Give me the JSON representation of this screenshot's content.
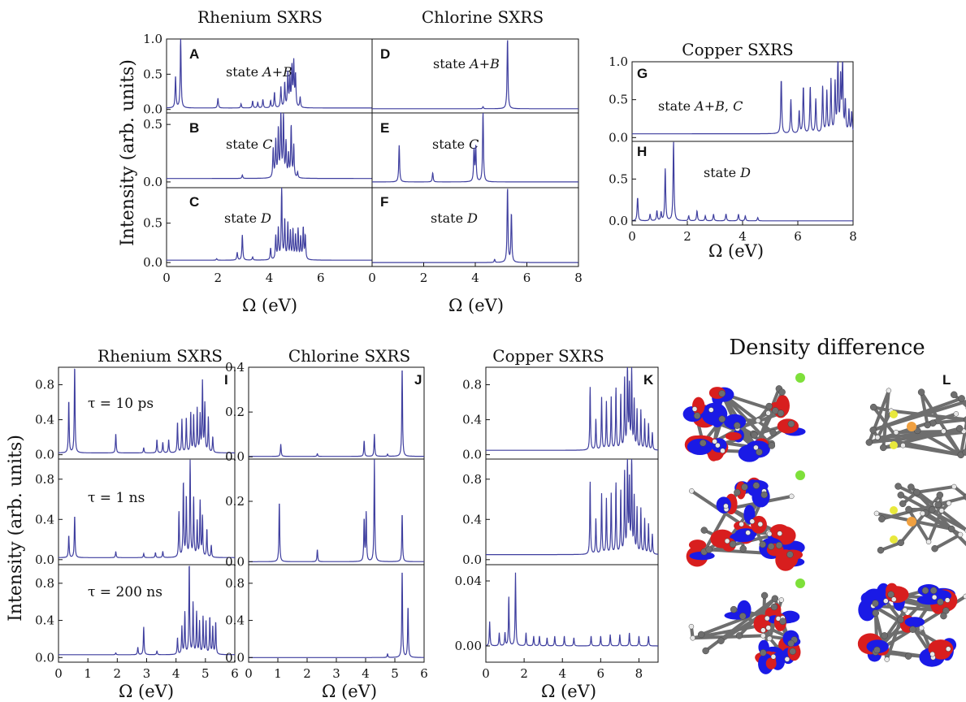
{
  "colors": {
    "line": "#3f3f9f",
    "axis": "#111111",
    "density_red": "#d81e1e",
    "density_blue": "#1a1ae6",
    "atom_grey": "#6e6e6e",
    "atom_white": "#e9e9e9",
    "atom_green": "#7ee03a",
    "atom_yellow": "#e8e83c",
    "atom_orange": "#f0a040"
  },
  "top": {
    "titles": {
      "rhenium": "Rhenium SXRS",
      "chlorine": "Chlorine SXRS",
      "copper": "Copper SXRS"
    },
    "ylabel": "Intensity (arb. units)",
    "xlabel": "Ω (eV)",
    "panel_letters": [
      "A",
      "B",
      "C",
      "D",
      "E",
      "F",
      "G",
      "H"
    ],
    "state_labels": {
      "A": "state A+B",
      "B": "state C",
      "C": "state D",
      "D": "state A+B",
      "E": "state C",
      "F": "state D",
      "G": "state A+B, C",
      "H": "state D"
    }
  },
  "bottom": {
    "titles": {
      "rhenium": "Rhenium SXRS",
      "chlorine": "Chlorine SXRS",
      "copper": "Copper SXRS",
      "density": "Density difference"
    },
    "ylabel": "Intensity (arb. units)",
    "xlabel": "Ω (eV)",
    "panel_letters": [
      "I",
      "J",
      "K",
      "L"
    ],
    "tau_labels": [
      "τ = 10 ps",
      "τ = 1 ns",
      "τ = 200 ns"
    ]
  },
  "chart_data": [
    {
      "type": "line",
      "panel": "A",
      "title": "Rhenium SXRS",
      "label": "state A+B",
      "xlim": [
        0,
        8
      ],
      "ylim": [
        -0.05,
        1.0
      ],
      "yticks": [
        "0.0",
        "0.5",
        "1.0"
      ],
      "baseline": 0.02,
      "peaks": [
        [
          0.35,
          0.45
        ],
        [
          0.55,
          1.0
        ],
        [
          2.0,
          0.14
        ],
        [
          2.9,
          0.06
        ],
        [
          3.35,
          0.1
        ],
        [
          3.55,
          0.08
        ],
        [
          3.75,
          0.12
        ],
        [
          4.05,
          0.1
        ],
        [
          4.2,
          0.22
        ],
        [
          4.45,
          0.3
        ],
        [
          4.6,
          0.35
        ],
        [
          4.72,
          0.48
        ],
        [
          4.8,
          0.4
        ],
        [
          4.88,
          0.55
        ],
        [
          4.95,
          0.62
        ],
        [
          5.02,
          0.45
        ],
        [
          5.2,
          0.15
        ]
      ]
    },
    {
      "type": "line",
      "panel": "B",
      "label": "state C",
      "xlim": [
        0,
        8
      ],
      "ylim": [
        -0.05,
        0.6
      ],
      "yticks": [
        "0.0",
        "0.5"
      ],
      "baseline": 0.03,
      "peaks": [
        [
          2.95,
          0.03
        ],
        [
          4.15,
          0.25
        ],
        [
          4.25,
          0.32
        ],
        [
          4.35,
          0.42
        ],
        [
          4.45,
          0.6
        ],
        [
          4.55,
          0.55
        ],
        [
          4.65,
          0.3
        ],
        [
          4.75,
          0.2
        ],
        [
          4.85,
          0.45
        ],
        [
          4.95,
          0.28
        ],
        [
          5.1,
          0.05
        ]
      ]
    },
    {
      "type": "line",
      "panel": "C",
      "label": "state D",
      "xlim": [
        0,
        8
      ],
      "ylim": [
        -0.05,
        0.95
      ],
      "yticks": [
        "0.0",
        "0.5"
      ],
      "baseline": 0.03,
      "peaks": [
        [
          1.95,
          0.02
        ],
        [
          2.75,
          0.1
        ],
        [
          2.95,
          0.32
        ],
        [
          3.35,
          0.04
        ],
        [
          4.05,
          0.15
        ],
        [
          4.25,
          0.3
        ],
        [
          4.35,
          0.4
        ],
        [
          4.48,
          0.92
        ],
        [
          4.6,
          0.5
        ],
        [
          4.72,
          0.45
        ],
        [
          4.82,
          0.35
        ],
        [
          4.92,
          0.38
        ],
        [
          5.02,
          0.3
        ],
        [
          5.12,
          0.38
        ],
        [
          5.22,
          0.28
        ],
        [
          5.32,
          0.4
        ],
        [
          5.4,
          0.3
        ]
      ]
    },
    {
      "type": "line",
      "panel": "D",
      "title": "Chlorine SXRS",
      "label": "state A+B",
      "xlim": [
        0,
        8
      ],
      "ylim": [
        -0.05,
        1.0
      ],
      "baseline": 0.01,
      "peaks": [
        [
          4.3,
          0.03
        ],
        [
          5.25,
          1.0
        ]
      ]
    },
    {
      "type": "line",
      "panel": "E",
      "label": "state C",
      "xlim": [
        0,
        8
      ],
      "ylim": [
        -0.05,
        0.6
      ],
      "baseline": 0.0,
      "peaks": [
        [
          1.05,
          0.32
        ],
        [
          2.35,
          0.08
        ],
        [
          3.95,
          0.28
        ],
        [
          4.02,
          0.3
        ],
        [
          4.3,
          0.62
        ]
      ]
    },
    {
      "type": "line",
      "panel": "F",
      "label": "state D",
      "xlim": [
        0,
        8
      ],
      "xticks": [
        "0",
        "2",
        "4",
        "6",
        "8"
      ],
      "ylim": [
        -0.05,
        0.95
      ],
      "baseline": 0.0,
      "peaks": [
        [
          4.75,
          0.04
        ],
        [
          5.25,
          0.95
        ],
        [
          5.4,
          0.62
        ]
      ]
    },
    {
      "type": "line",
      "panel": "G",
      "title": "Copper SXRS",
      "label": "state A+B, C",
      "xlim": [
        0,
        8
      ],
      "ylim": [
        -0.05,
        1.0
      ],
      "yticks": [
        "0.0",
        "0.5",
        "1.0"
      ],
      "baseline": 0.05,
      "peaks": [
        [
          5.4,
          0.72
        ],
        [
          5.75,
          0.45
        ],
        [
          6.05,
          0.3
        ],
        [
          6.2,
          0.62
        ],
        [
          6.45,
          0.62
        ],
        [
          6.65,
          0.45
        ],
        [
          6.9,
          0.62
        ],
        [
          7.05,
          0.55
        ],
        [
          7.2,
          0.7
        ],
        [
          7.35,
          0.65
        ],
        [
          7.45,
          1.0
        ],
        [
          7.55,
          0.72
        ],
        [
          7.62,
          0.95
        ],
        [
          7.72,
          0.42
        ],
        [
          7.85,
          0.3
        ],
        [
          7.95,
          0.28
        ]
      ]
    },
    {
      "type": "line",
      "panel": "H",
      "label": "state D",
      "xlim": [
        0,
        8
      ],
      "xticks": [
        "0",
        "2",
        "4",
        "6",
        "8"
      ],
      "ylim": [
        -0.05,
        0.95
      ],
      "yticks": [
        "0.0",
        "0.5"
      ],
      "baseline": 0.0,
      "peaks": [
        [
          0.2,
          0.28
        ],
        [
          0.65,
          0.08
        ],
        [
          0.9,
          0.12
        ],
        [
          1.05,
          0.1
        ],
        [
          1.2,
          0.62
        ],
        [
          1.5,
          0.95
        ],
        [
          2.05,
          0.06
        ],
        [
          2.35,
          0.12
        ],
        [
          2.65,
          0.06
        ],
        [
          2.95,
          0.08
        ],
        [
          3.4,
          0.08
        ],
        [
          3.85,
          0.08
        ],
        [
          4.1,
          0.06
        ],
        [
          4.55,
          0.04
        ]
      ]
    },
    {
      "type": "line",
      "panel": "I",
      "title": "Rhenium SXRS",
      "label": "τ = 10 ps",
      "xlim": [
        0,
        6
      ],
      "ylim": [
        -0.05,
        1.0
      ],
      "yticks": [
        "0.0",
        "0.4",
        "0.8"
      ],
      "baseline": 0.02,
      "peaks": [
        [
          0.35,
          0.6
        ],
        [
          0.55,
          1.0
        ],
        [
          1.95,
          0.22
        ],
        [
          2.9,
          0.06
        ],
        [
          3.35,
          0.15
        ],
        [
          3.55,
          0.12
        ],
        [
          3.75,
          0.15
        ],
        [
          4.05,
          0.35
        ],
        [
          4.2,
          0.38
        ],
        [
          4.35,
          0.4
        ],
        [
          4.5,
          0.45
        ],
        [
          4.6,
          0.42
        ],
        [
          4.72,
          0.5
        ],
        [
          4.82,
          0.42
        ],
        [
          4.9,
          0.8
        ],
        [
          4.98,
          0.55
        ],
        [
          5.1,
          0.4
        ],
        [
          5.25,
          0.18
        ]
      ]
    },
    {
      "type": "line",
      "panel": "I",
      "label": "τ = 1 ns",
      "xlim": [
        0,
        6
      ],
      "ylim": [
        -0.05,
        1.0
      ],
      "yticks": [
        "0.0",
        "0.4",
        "0.8"
      ],
      "baseline": 0.02,
      "peaks": [
        [
          0.35,
          0.22
        ],
        [
          0.55,
          0.42
        ],
        [
          1.95,
          0.06
        ],
        [
          2.9,
          0.04
        ],
        [
          3.3,
          0.05
        ],
        [
          3.55,
          0.06
        ],
        [
          4.1,
          0.45
        ],
        [
          4.25,
          0.75
        ],
        [
          4.35,
          0.6
        ],
        [
          4.48,
          0.95
        ],
        [
          4.6,
          0.58
        ],
        [
          4.72,
          0.35
        ],
        [
          4.82,
          0.55
        ],
        [
          4.9,
          0.4
        ],
        [
          5.05,
          0.28
        ],
        [
          5.2,
          0.12
        ]
      ]
    },
    {
      "type": "line",
      "panel": "I",
      "label": "τ = 200 ns",
      "xlim": [
        0,
        6
      ],
      "xticks": [
        "0",
        "1",
        "2",
        "3",
        "4",
        "5",
        "6"
      ],
      "ylim": [
        -0.05,
        1.0
      ],
      "yticks": [
        "0.0",
        "0.4",
        "0.8"
      ],
      "baseline": 0.03,
      "peaks": [
        [
          1.95,
          0.02
        ],
        [
          2.7,
          0.08
        ],
        [
          2.9,
          0.3
        ],
        [
          3.35,
          0.04
        ],
        [
          4.05,
          0.18
        ],
        [
          4.2,
          0.3
        ],
        [
          4.3,
          0.45
        ],
        [
          4.45,
          0.98
        ],
        [
          4.58,
          0.55
        ],
        [
          4.7,
          0.45
        ],
        [
          4.8,
          0.35
        ],
        [
          4.92,
          0.4
        ],
        [
          5.02,
          0.35
        ],
        [
          5.15,
          0.4
        ],
        [
          5.25,
          0.3
        ],
        [
          5.35,
          0.35
        ]
      ]
    },
    {
      "type": "line",
      "panel": "J",
      "title": "Chlorine SXRS",
      "label": "τ = 10 ps",
      "xlim": [
        0,
        6
      ],
      "ylim": [
        -0.01,
        0.4
      ],
      "yticks": [
        "0.0",
        "0.2",
        "0.4"
      ],
      "baseline": 0.002,
      "peaks": [
        [
          1.1,
          0.055
        ],
        [
          2.35,
          0.012
        ],
        [
          3.95,
          0.07
        ],
        [
          4.3,
          0.1
        ],
        [
          4.75,
          0.01
        ],
        [
          5.25,
          0.4
        ]
      ]
    },
    {
      "type": "line",
      "panel": "J",
      "label": "τ = 1 ns",
      "xlim": [
        0,
        6
      ],
      "ylim": [
        -0.01,
        0.34
      ],
      "yticks": [
        "0.0",
        "0.2"
      ],
      "baseline": 0.0,
      "peaks": [
        [
          1.05,
          0.2
        ],
        [
          2.35,
          0.04
        ],
        [
          3.95,
          0.14
        ],
        [
          4.02,
          0.16
        ],
        [
          4.3,
          0.34
        ],
        [
          5.25,
          0.16
        ]
      ]
    },
    {
      "type": "line",
      "panel": "J",
      "label": "τ = 200 ns",
      "xlim": [
        0,
        6
      ],
      "xticks": [
        "0",
        "1",
        "2",
        "3",
        "4",
        "5",
        "6"
      ],
      "ylim": [
        -0.05,
        1.0
      ],
      "yticks": [
        "0.0",
        "0.4",
        "0.8"
      ],
      "baseline": 0.0,
      "peaks": [
        [
          4.75,
          0.04
        ],
        [
          5.25,
          0.95
        ],
        [
          5.45,
          0.55
        ]
      ]
    },
    {
      "type": "line",
      "panel": "K",
      "title": "Copper SXRS",
      "label": "τ = 10 ps",
      "xlim": [
        0,
        9
      ],
      "ylim": [
        -0.05,
        1.0
      ],
      "yticks": [
        "0.0",
        "0.4",
        "0.8"
      ],
      "baseline": 0.05,
      "peaks": [
        [
          5.45,
          0.72
        ],
        [
          5.75,
          0.35
        ],
        [
          6.05,
          0.6
        ],
        [
          6.3,
          0.55
        ],
        [
          6.55,
          0.6
        ],
        [
          6.8,
          0.7
        ],
        [
          7.05,
          0.62
        ],
        [
          7.25,
          0.8
        ],
        [
          7.4,
          1.0
        ],
        [
          7.5,
          0.7
        ],
        [
          7.62,
          0.95
        ],
        [
          7.75,
          0.55
        ],
        [
          7.9,
          0.45
        ],
        [
          8.1,
          0.45
        ],
        [
          8.3,
          0.35
        ],
        [
          8.5,
          0.3
        ],
        [
          8.7,
          0.2
        ]
      ]
    },
    {
      "type": "line",
      "panel": "K",
      "label": "τ = 1 ns",
      "xlim": [
        0,
        9
      ],
      "ylim": [
        -0.05,
        1.0
      ],
      "yticks": [
        "0.0",
        "0.4",
        "0.8"
      ],
      "baseline": 0.05,
      "peaks": [
        [
          5.45,
          0.72
        ],
        [
          5.75,
          0.35
        ],
        [
          6.05,
          0.6
        ],
        [
          6.3,
          0.55
        ],
        [
          6.55,
          0.6
        ],
        [
          6.8,
          0.7
        ],
        [
          7.05,
          0.62
        ],
        [
          7.25,
          0.8
        ],
        [
          7.4,
          0.95
        ],
        [
          7.5,
          0.7
        ],
        [
          7.62,
          1.0
        ],
        [
          7.75,
          0.55
        ],
        [
          7.9,
          0.45
        ],
        [
          8.1,
          0.45
        ],
        [
          8.3,
          0.35
        ],
        [
          8.5,
          0.3
        ],
        [
          8.7,
          0.2
        ]
      ]
    },
    {
      "type": "line",
      "panel": "K",
      "label": "τ = 200 ns",
      "xlim": [
        0,
        9
      ],
      "xticks": [
        "0",
        "2",
        "4",
        "6",
        "8"
      ],
      "ylim": [
        -0.01,
        0.05
      ],
      "yticks": [
        "0.00",
        "0.04"
      ],
      "baseline": 0.0,
      "peaks": [
        [
          0.2,
          0.015
        ],
        [
          0.7,
          0.008
        ],
        [
          1.0,
          0.008
        ],
        [
          1.2,
          0.03
        ],
        [
          1.55,
          0.045
        ],
        [
          2.1,
          0.008
        ],
        [
          2.5,
          0.006
        ],
        [
          2.8,
          0.006
        ],
        [
          3.2,
          0.005
        ],
        [
          3.6,
          0.006
        ],
        [
          4.1,
          0.006
        ],
        [
          4.6,
          0.005
        ],
        [
          5.5,
          0.006
        ],
        [
          6.0,
          0.006
        ],
        [
          6.5,
          0.007
        ],
        [
          7.0,
          0.007
        ],
        [
          7.5,
          0.008
        ],
        [
          8.0,
          0.006
        ],
        [
          8.5,
          0.006
        ]
      ]
    }
  ]
}
